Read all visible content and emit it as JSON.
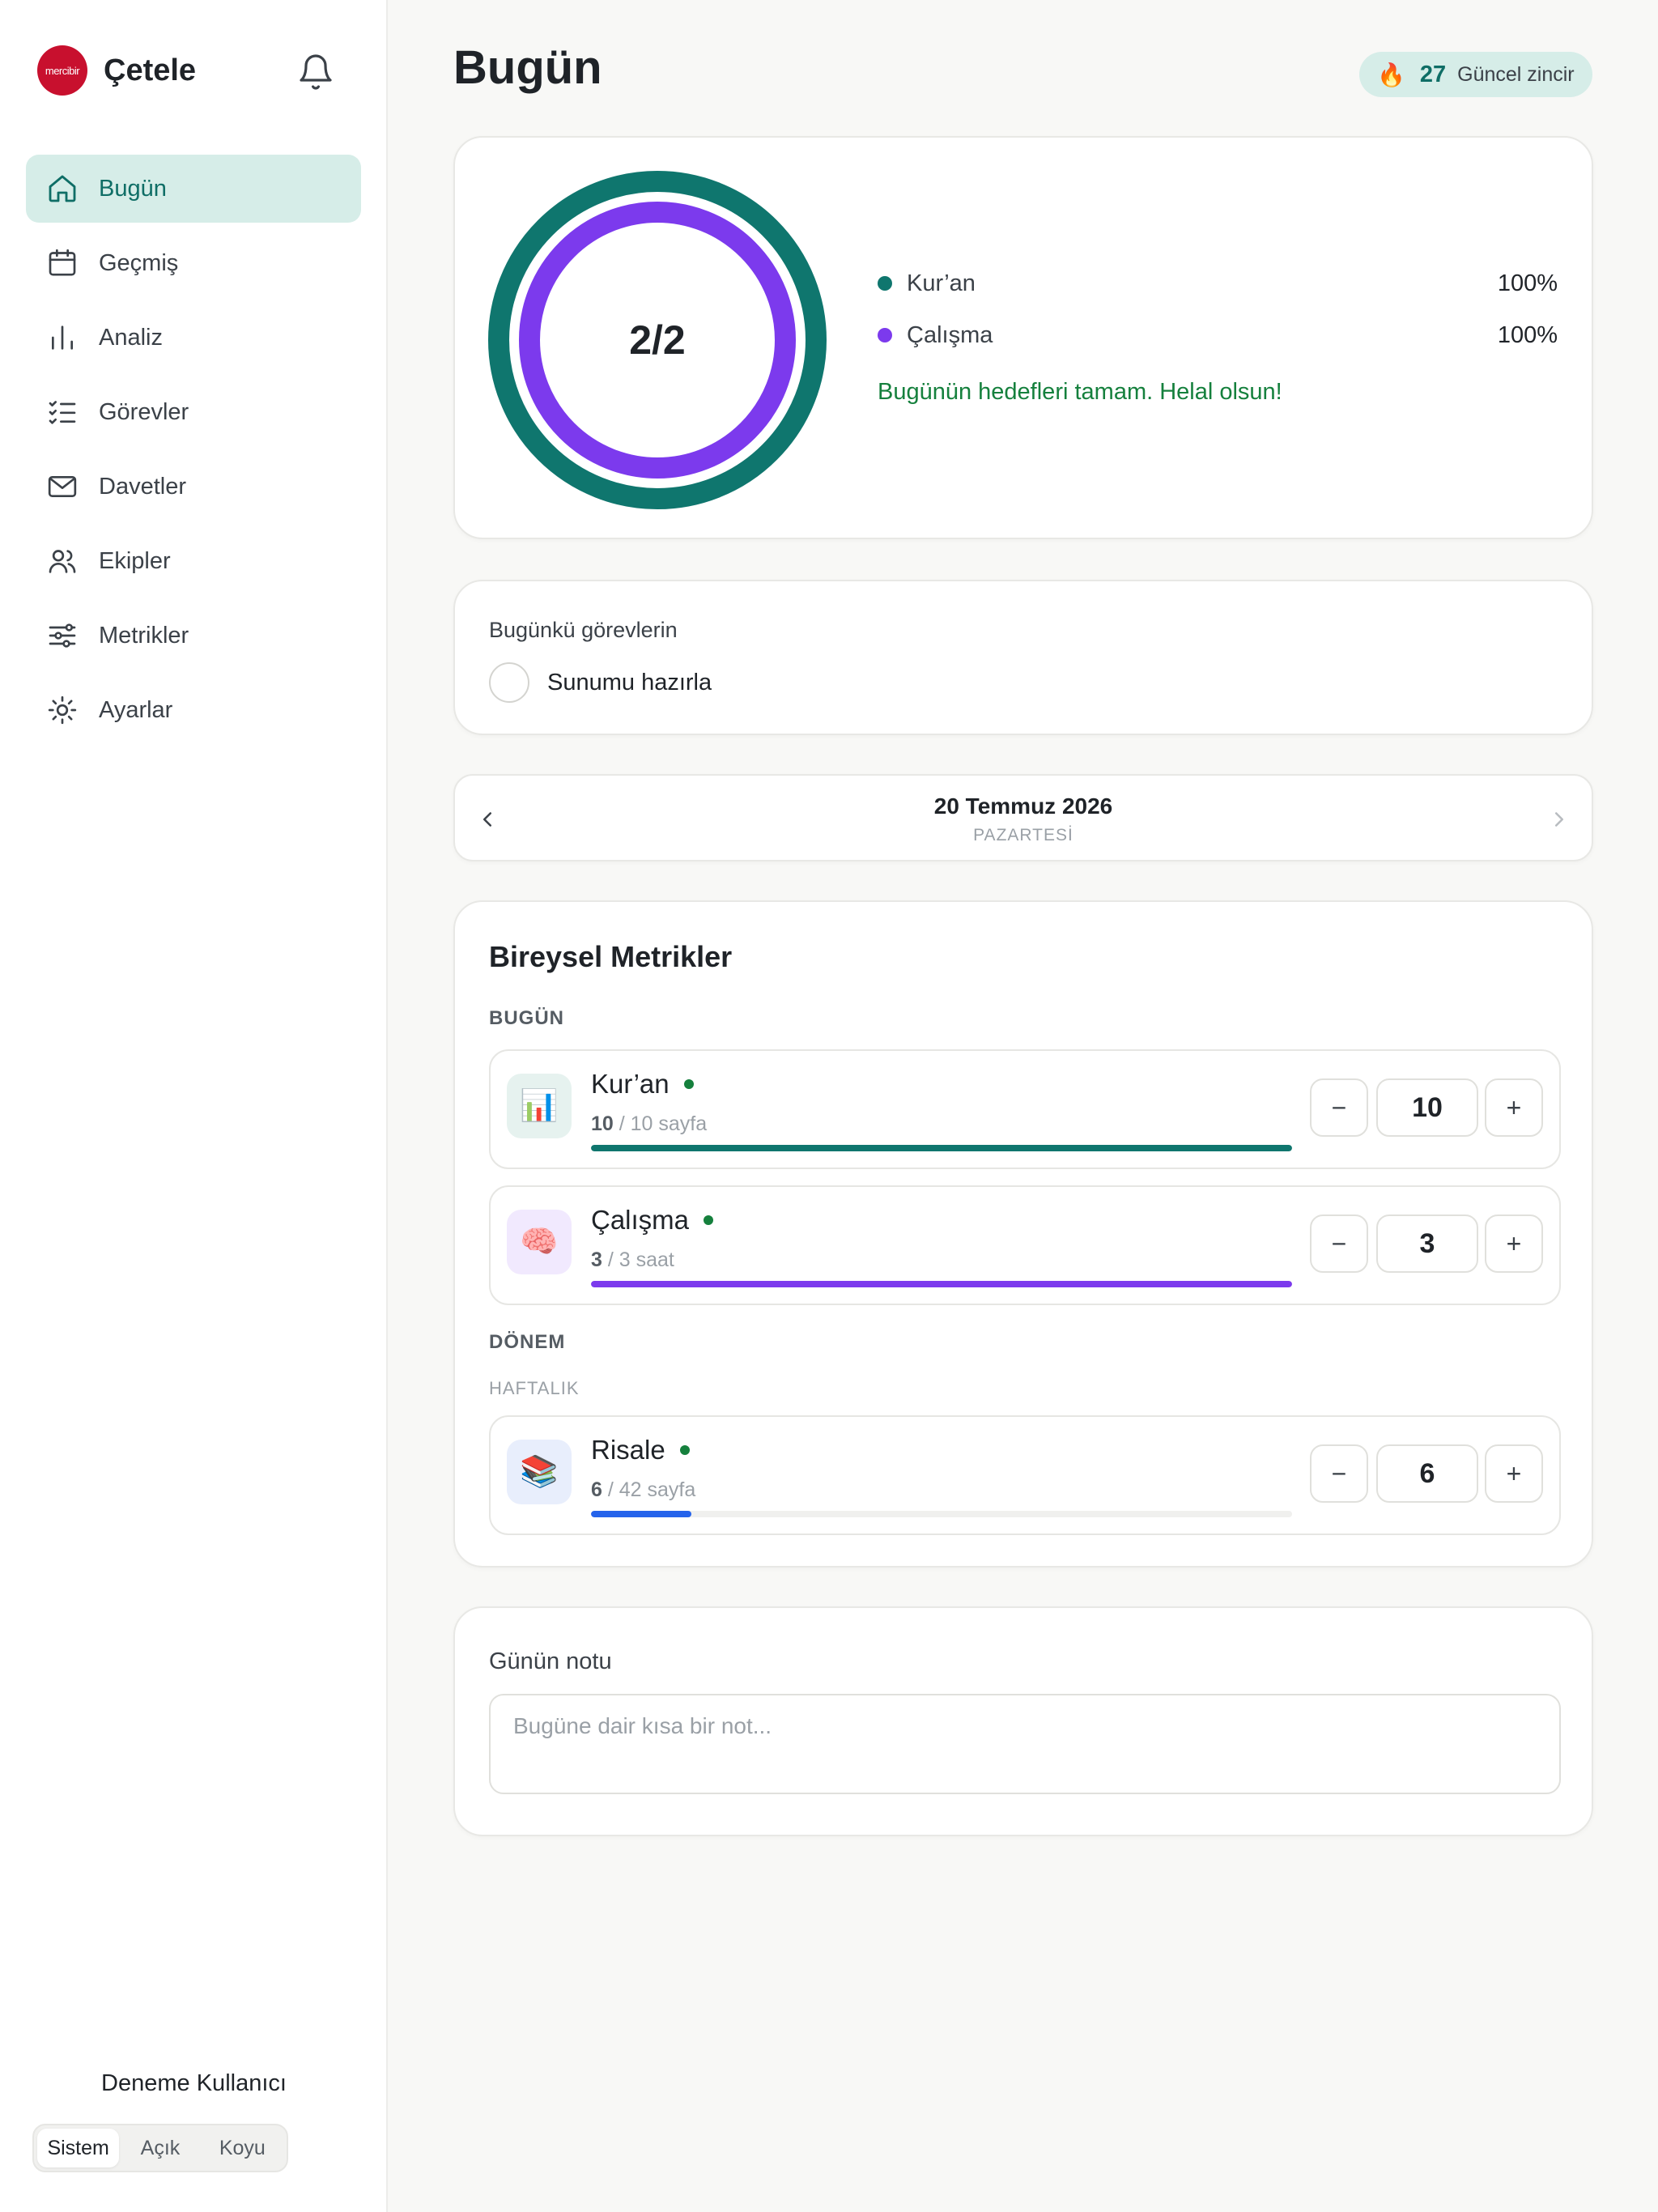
{
  "app": {
    "logo_text": "mercibir",
    "name": "Çetele"
  },
  "sidebar": {
    "items": [
      {
        "label": "Bugün",
        "icon": "home-icon",
        "active": true
      },
      {
        "label": "Geçmiş",
        "icon": "calendar-icon"
      },
      {
        "label": "Analiz",
        "icon": "bar-chart-icon"
      },
      {
        "label": "Görevler",
        "icon": "checklist-icon"
      },
      {
        "label": "Davetler",
        "icon": "mail-icon"
      },
      {
        "label": "Ekipler",
        "icon": "users-icon"
      },
      {
        "label": "Metrikler",
        "icon": "sliders-icon"
      },
      {
        "label": "Ayarlar",
        "icon": "sun-icon"
      }
    ],
    "user_name": "Deneme Kullanıcı",
    "theme_options": [
      "Sistem",
      "Açık",
      "Koyu"
    ],
    "theme_selected": "Sistem"
  },
  "header": {
    "title": "Bugün",
    "streak_count": "27",
    "streak_label": "Güncel zincir"
  },
  "summary": {
    "ring_label": "2/2",
    "legend": [
      {
        "name": "Kur’an",
        "pct": "100%",
        "color": "#0f766e",
        "value": 1.0
      },
      {
        "name": "Çalışma",
        "pct": "100%",
        "color": "#7c3aed",
        "value": 1.0
      }
    ],
    "message": "Bugünün hedefleri tamam. Helal olsun!"
  },
  "tasks": {
    "title": "Bugünkü görevlerin",
    "items": [
      {
        "label": "Sunumu hazırla",
        "done": false
      }
    ]
  },
  "date": {
    "main": "20 Temmuz 2026",
    "weekday": "PAZARTESİ"
  },
  "metrics": {
    "title": "Bireysel Metrikler",
    "today_label": "BUGÜN",
    "period_label": "DÖNEM",
    "weekly_label": "HAFTALIK",
    "today": [
      {
        "name": "Kur’an",
        "current": "10",
        "target_text": " / 10 sayfa",
        "value": "10",
        "progress": 1.0,
        "color": "#0f766e",
        "icon": "📊",
        "icon_bg": "#e6f2ef"
      },
      {
        "name": "Çalışma",
        "current": "3",
        "target_text": " / 3 saat",
        "value": "3",
        "progress": 1.0,
        "color": "#7c3aed",
        "icon": "🧠",
        "icon_bg": "#f1e9fe"
      }
    ],
    "weekly": [
      {
        "name": "Risale",
        "current": "6",
        "target_text": " / 42 sayfa",
        "value": "6",
        "progress": 0.143,
        "color": "#2563eb",
        "icon": "📚",
        "icon_bg": "#e8eefc"
      }
    ],
    "minus": "−",
    "plus": "+"
  },
  "note": {
    "title": "Günün notu",
    "placeholder": "Bugüne dair kısa bir not..."
  }
}
